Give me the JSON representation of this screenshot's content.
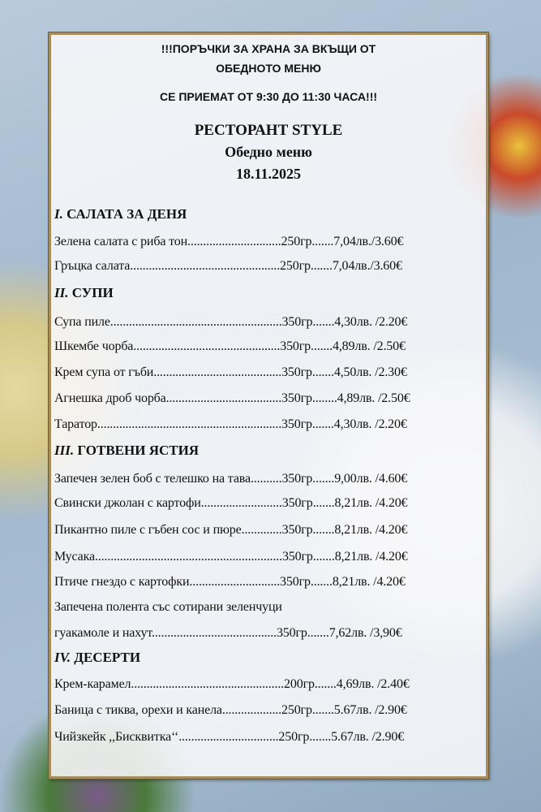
{
  "notice": {
    "line1": "!!!ПОРЪЧКИ ЗА ХРАНА ЗА ВКЪЩИ ОТ",
    "line2": "ОБЕДНОТО МЕНЮ",
    "line3": "СЕ ПРИЕМАТ ОТ 9:30 ДО 11:30 ЧАСА!!!"
  },
  "header": {
    "restaurant": "РЕСТОРАНТ STYLE",
    "menu_title": "Обедно меню",
    "date": "18.11.2025"
  },
  "sections": [
    {
      "num": "I.",
      "title": "САЛАТА ЗА ДЕНЯ",
      "items": [
        "Зелена салата с риба тон..............................250гр.......7,04лв./3.60€",
        "Гръцка салата................................................250гр.......7,04лв./3.60€"
      ]
    },
    {
      "num": "II.",
      "title": "СУПИ",
      "items": [
        "Супа пиле.......................................................350гр.......4,30лв. /2.20€",
        "Шкембе чорба...............................................350гр.......4,89лв. /2.50€",
        "Крем супа от гъби.........................................350гр.......4,50лв. /2.30€",
        "Агнешка дроб чорба.....................................350гр........4,89лв. /2.50€",
        "Таратор...........................................................350гр.......4,30лв. /2.20€"
      ]
    },
    {
      "num": "III.",
      "title": "ГОТВЕНИ ЯСТИЯ",
      "items": [
        "Запечен зелен боб с телешко на тава..........350гр.......9,00лв. /4.60€",
        "Свински джолан с картофи..........................350гр.......8,21лв. /4.20€",
        "Пикантно пиле с гъбен сос и пюре.............350гр.......8,21лв. /4.20€",
        "Мусака............................................................350гр.......8,21лв. /4.20€",
        "Птиче гнездо с картофки.............................350гр.......8,21лв. /4.20€",
        "Запечена полента със сотирани зеленчуци",
        "гуакамоле и нахут........................................350гр.......7,62лв. /3,90€"
      ]
    },
    {
      "num": "IV.",
      "title": "ДЕСЕРТИ",
      "items": [
        "Крем-карамел.................................................200гр.......4,69лв. /2.40€",
        "Баница с тиква, орехи и канела...................250гр.......5.67лв. /2.90€",
        "Чийзкейк ,,Бисквитка‘‘................................250гр.......5.67лв. /2.90€"
      ]
    }
  ]
}
